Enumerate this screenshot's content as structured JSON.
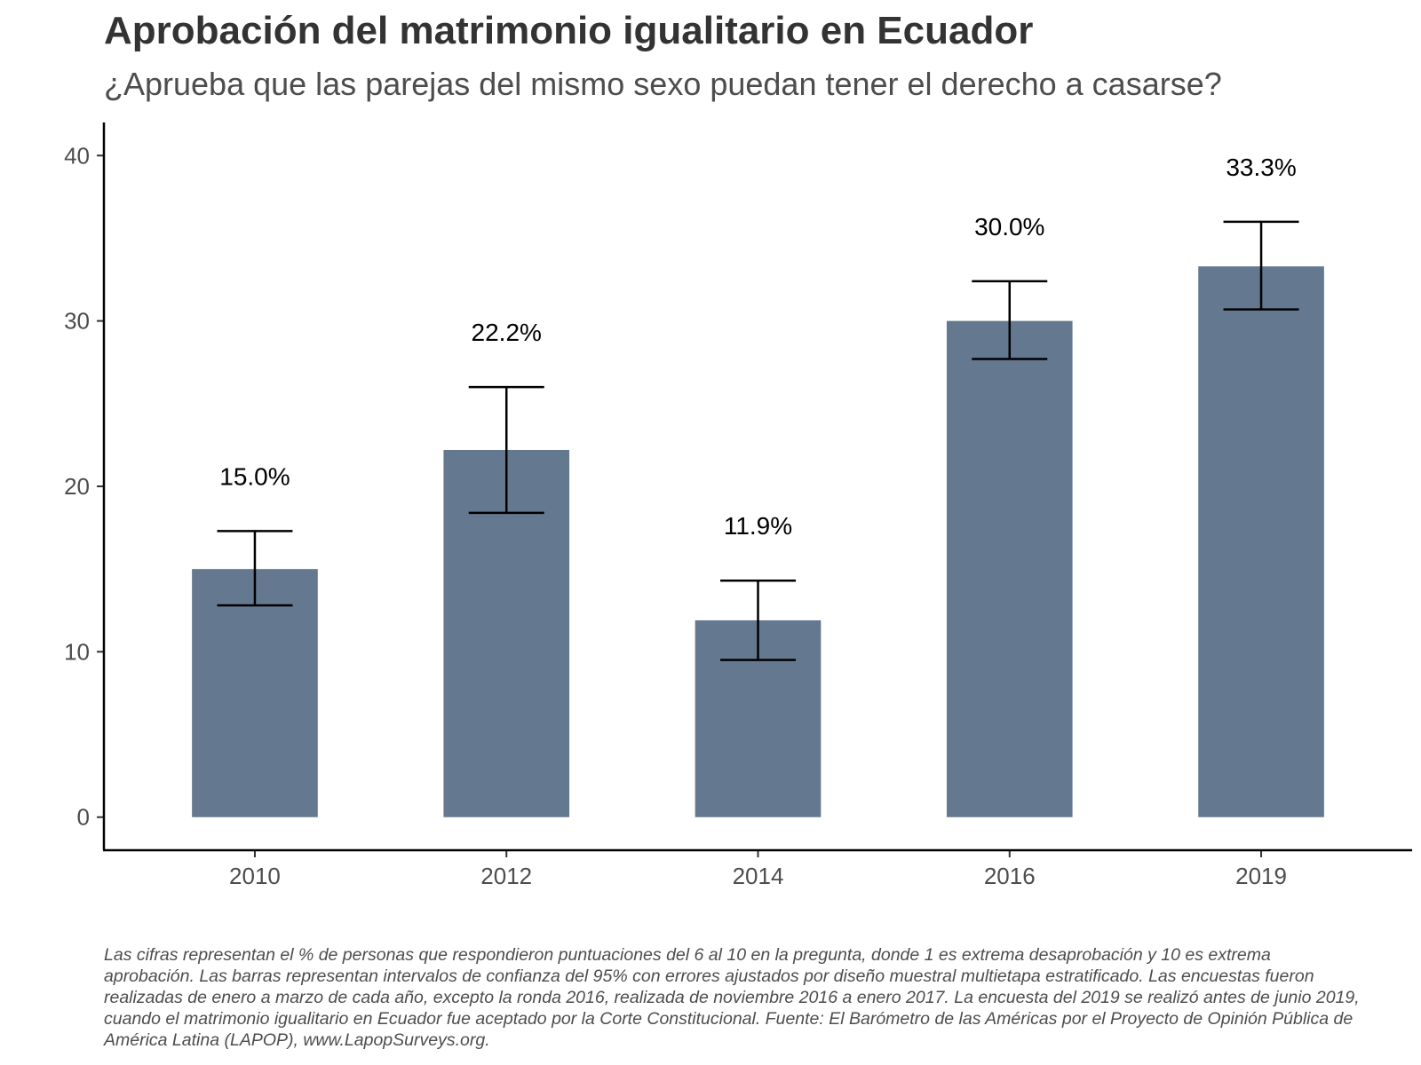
{
  "chart_data": {
    "type": "bar",
    "title": "Aprobación del matrimonio igualitario en Ecuador",
    "subtitle": "¿Aprueba que las parejas del mismo sexo puedan tener el derecho a casarse?",
    "xlabel": "",
    "ylabel": "",
    "categories": [
      "2010",
      "2012",
      "2014",
      "2016",
      "2019"
    ],
    "values": [
      15.0,
      22.2,
      11.9,
      30.0,
      33.3
    ],
    "data_labels": [
      "15.0%",
      "22.2%",
      "11.9%",
      "30.0%",
      "33.3%"
    ],
    "error_low": [
      12.8,
      18.4,
      9.5,
      27.7,
      30.7
    ],
    "error_high": [
      17.3,
      26.0,
      14.3,
      32.4,
      36.0
    ],
    "ylim": [
      -2,
      42
    ],
    "yticks": [
      0,
      10,
      20,
      30,
      40
    ],
    "grid": false,
    "legend": "none",
    "bar_color": "#64788f",
    "caption": "Las cifras representan el % de personas que respondieron puntuaciones del 6 al 10 en la pregunta, donde 1 es extrema desaprobación y 10 es extrema aprobación. Las barras representan intervalos de confianza del 95% con errores ajustados por diseño muestral multietapa estratificado. Las encuestas fueron realizadas de enero a marzo de cada año, excepto la ronda 2016, realizada de noviembre 2016 a enero 2017. La encuesta del 2019 se realizó antes de junio 2019, cuando el matrimonio igualitario en Ecuador fue aceptado por la Corte Constitucional. Fuente: El Barómetro de las Américas por el Proyecto de Opinión Pública de América Latina (LAPOP), www.LapopSurveys.org."
  }
}
